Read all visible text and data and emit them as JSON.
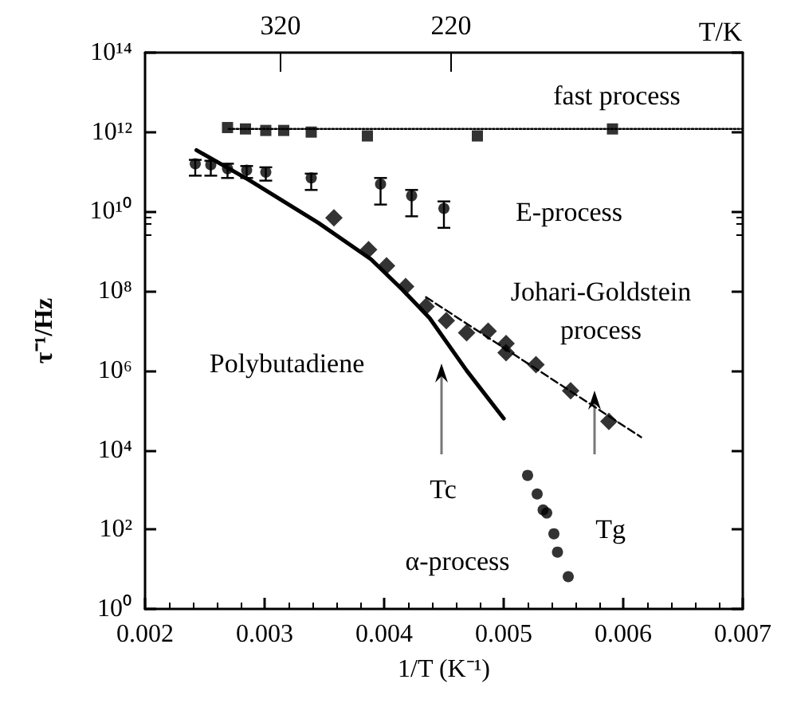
{
  "chart_data": {
    "type": "scatter",
    "xlabel": "1/T (K⁻¹)",
    "ylabel": "τ⁻¹/Hz",
    "xlim": [
      0.002,
      0.007
    ],
    "xticks": [
      0.002,
      0.003,
      0.004,
      0.005,
      0.006,
      0.007
    ],
    "ylim": [
      1,
      100000000000000.0
    ],
    "yticks": [
      {
        "value": 1,
        "label": "10⁰"
      },
      {
        "value": 100,
        "label": "10²"
      },
      {
        "value": 10000,
        "label": "10⁴"
      },
      {
        "value": 1000000,
        "label": "10⁶"
      },
      {
        "value": 100000000,
        "label": "10⁸"
      },
      {
        "value": 10000000000,
        "label": "10¹⁰"
      },
      {
        "value": 1000000000000,
        "label": "10¹²"
      },
      {
        "value": 100000000000000,
        "label": "10¹⁴"
      }
    ],
    "log": "y",
    "grid": false,
    "series": [
      {
        "marker": "square",
        "color": "#000000",
        "x": [
          0.00269,
          0.00284,
          0.00301,
          0.00316,
          0.00339,
          0.00386,
          0.00478,
          0.00591
        ],
        "values": [
          1300000000000.0,
          1200000000000.0,
          1100000000000.0,
          1100000000000.0,
          1000000000000.0,
          800000000000.0,
          800000000000.0,
          1200000000000.0
        ]
      },
      {
        "type": "line",
        "marker": "none",
        "line_style": "dotted",
        "color": "#000000",
        "x": [
          0.0027,
          0.007
        ],
        "values": [
          1200000000000.0,
          1200000000000.0
        ]
      },
      {
        "marker": "circle",
        "color": "#000000",
        "x": [
          0.00242,
          0.00255,
          0.00269,
          0.00285,
          0.00301,
          0.00339,
          0.00397,
          0.00423,
          0.0045
        ],
        "values": [
          160000000000.0,
          150000000000.0,
          120000000000.0,
          110000000000.0,
          98000000000.0,
          70000000000.0,
          49000000000.0,
          25000000000.0,
          12000000000.0
        ],
        "errors": [
          [
            80000000000.0,
            200000000000.0
          ],
          [
            80000000000.0,
            190000000000.0
          ],
          [
            70000000000.0,
            160000000000.0
          ],
          [
            70000000000.0,
            140000000000.0
          ],
          [
            60000000000.0,
            130000000000.0
          ],
          [
            35000000000.0,
            90000000000.0
          ],
          [
            15000000000.0,
            70000000000.0
          ],
          [
            7600000000.0,
            35000000000.0
          ],
          [
            3900000000.0,
            18000000000.0
          ]
        ]
      },
      {
        "marker": "diamond",
        "color": "#000000",
        "x": [
          0.00358,
          0.00387,
          0.00402,
          0.00418,
          0.00435,
          0.00452,
          0.00469,
          0.00487,
          0.00502,
          0.00502,
          0.00527,
          0.00556,
          0.00588
        ],
        "values": [
          7000000000.0,
          1100000000.0,
          430000000.0,
          130000000.0,
          41000000.0,
          18000000.0,
          8900000.0,
          9800000.0,
          4800000.0,
          2800000.0,
          1400000.0,
          310000.0,
          52000.0
        ]
      },
      {
        "type": "line",
        "marker": "none",
        "line_style": "dashed",
        "color": "#000000",
        "x": [
          0.00435,
          0.00615
        ],
        "values": [
          70000000.0,
          21000.0
        ]
      },
      {
        "type": "line",
        "marker": "none",
        "line_style": "solid",
        "color": "#000000",
        "x": [
          0.00243,
          0.00287,
          0.00345,
          0.00389,
          0.00415,
          0.00438,
          0.00469,
          0.005
        ],
        "values": [
          350000000000.0,
          62000000000.0,
          5200000000.0,
          630000000.0,
          110000000.0,
          21000000.0,
          1000000.0,
          62000.0
        ]
      },
      {
        "marker": "circle",
        "color": "#000000",
        "x": [
          0.0052,
          0.00528,
          0.00533,
          0.00536,
          0.00542,
          0.00545,
          0.00554
        ],
        "values": [
          2300,
          780,
          310,
          260,
          78,
          27,
          6.5
        ]
      }
    ],
    "annotations": [
      "fast process",
      "E-process",
      "Johari-Goldstein\nprocess",
      "Polybutadiene",
      "α-process",
      "Tc",
      "Tg",
      "320",
      "220",
      "T/K"
    ]
  }
}
